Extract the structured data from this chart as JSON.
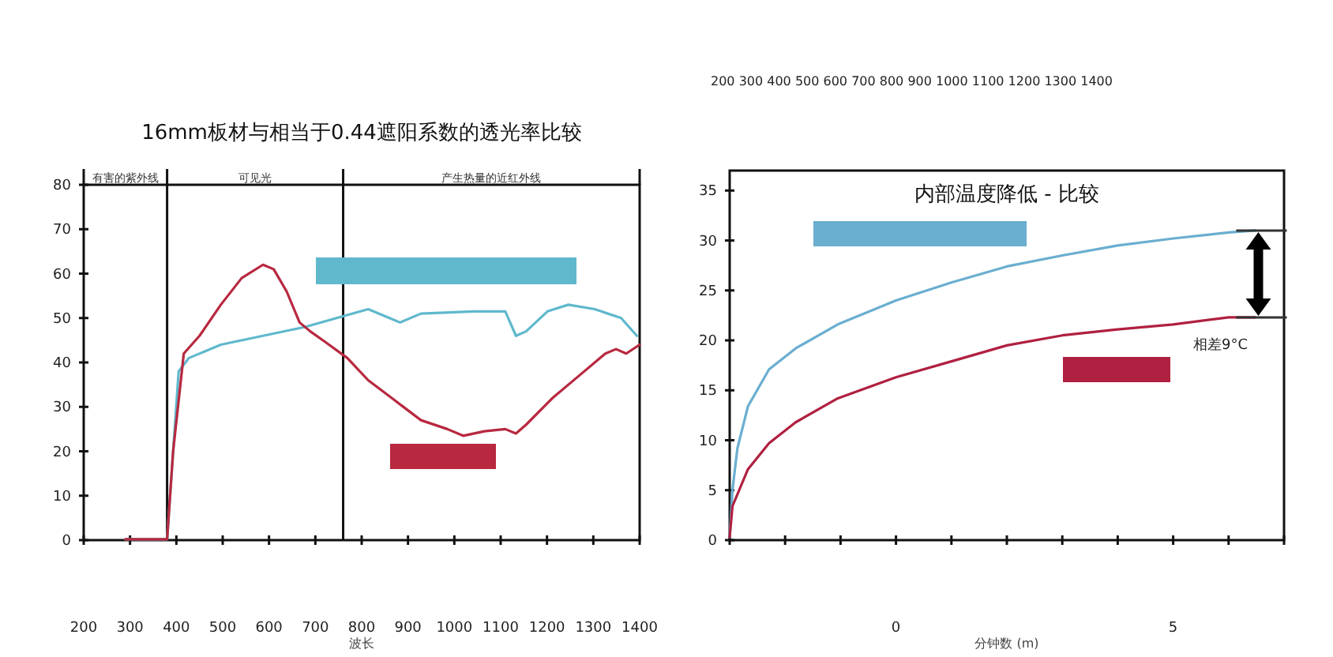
{
  "chart_data": [
    {
      "type": "line",
      "title": "16mm板材与相当于0.44遮阳系数的透光率比较",
      "xlabel": "波长",
      "xlim": [
        200,
        1400
      ],
      "xticks": [
        200,
        300,
        400,
        500,
        600,
        700,
        800,
        900,
        1000,
        1100,
        1200,
        1300,
        1400
      ],
      "ylim": [
        0,
        80
      ],
      "yticks": [
        0,
        10,
        20,
        30,
        40,
        50,
        60,
        70,
        80
      ],
      "ref_lines": [
        {
          "axis": "x",
          "value": 380,
          "label": null
        },
        {
          "axis": "x",
          "value": 760,
          "label": null
        }
      ],
      "annotations": [
        "有害的紫外线",
        "可见光",
        "产生热量的近红外线"
      ],
      "series": [
        {
          "color": "#5fb8cc",
          "x": [
            290,
            380,
            393,
            405,
            427,
            496,
            587,
            678,
            746,
            814,
            860,
            883,
            928,
            1042,
            1110,
            1133,
            1155,
            1201,
            1246,
            1303,
            1360,
            1394
          ],
          "values": [
            0.2,
            0.2,
            20,
            38,
            41,
            44,
            46,
            48,
            50,
            52,
            50,
            49,
            51,
            51.5,
            51.5,
            46,
            47,
            51.5,
            53,
            52,
            50,
            46
          ]
        },
        {
          "color": "#b8283f",
          "x": [
            290,
            380,
            393,
            416,
            450,
            496,
            541,
            587,
            610,
            638,
            666,
            689,
            723,
            769,
            814,
            871,
            928,
            985,
            1019,
            1065,
            1110,
            1133,
            1155,
            1212,
            1269,
            1326,
            1349,
            1371,
            1400
          ],
          "values": [
            0.2,
            0.2,
            20,
            42,
            46,
            53,
            59,
            62,
            61,
            56,
            49,
            47,
            44.5,
            41,
            36,
            31.5,
            27,
            25,
            23.5,
            24.5,
            25,
            24,
            26,
            32,
            37,
            42,
            43,
            42,
            44
          ]
        }
      ]
    },
    {
      "type": "line",
      "title": "内部温度降低 - 比较",
      "xlabel": "分钟数 (m)",
      "xlim": [
        -3,
        7
      ],
      "xticks": [
        {
          "value": -3,
          "label": null
        },
        {
          "value": -2,
          "label": null
        },
        {
          "value": -1,
          "label": null
        },
        0,
        {
          "value": 1,
          "label": null
        },
        {
          "value": 2,
          "label": null
        },
        {
          "value": 3,
          "label": null
        },
        {
          "value": 4,
          "label": null
        },
        5,
        {
          "value": 6,
          "label": null
        },
        {
          "value": 7,
          "label": null
        }
      ],
      "ylim": [
        0,
        37
      ],
      "yticks": [
        0,
        5,
        10,
        15,
        20,
        25,
        30,
        35
      ],
      "annotations": [
        "相差9°C",
        "200 300 400 500 600 700 800 900 1000 1100 1200 1300 1400"
      ],
      "series": [
        {
          "color": "#6aaed0",
          "x": [
            -3,
            -2.95,
            -2.86,
            -2.67,
            -2.29,
            -1.81,
            -1.05,
            0,
            1,
            2,
            3,
            4,
            5,
            6,
            6.48
          ],
          "values": [
            0.3,
            5,
            9.2,
            13.4,
            17.1,
            19.2,
            21.6,
            24,
            25.8,
            27.4,
            28.5,
            29.5,
            30.2,
            30.8,
            31
          ]
        },
        {
          "color": "#b02040",
          "x": [
            -3,
            -2.95,
            -2.67,
            -2.29,
            -1.81,
            -1.05,
            0,
            1,
            2,
            3,
            4,
            5,
            6,
            6.48
          ],
          "values": [
            0.3,
            3.4,
            7.1,
            9.7,
            11.8,
            14.2,
            16.3,
            17.9,
            19.5,
            20.5,
            21.1,
            21.6,
            22.3,
            22.3
          ]
        }
      ]
    }
  ]
}
